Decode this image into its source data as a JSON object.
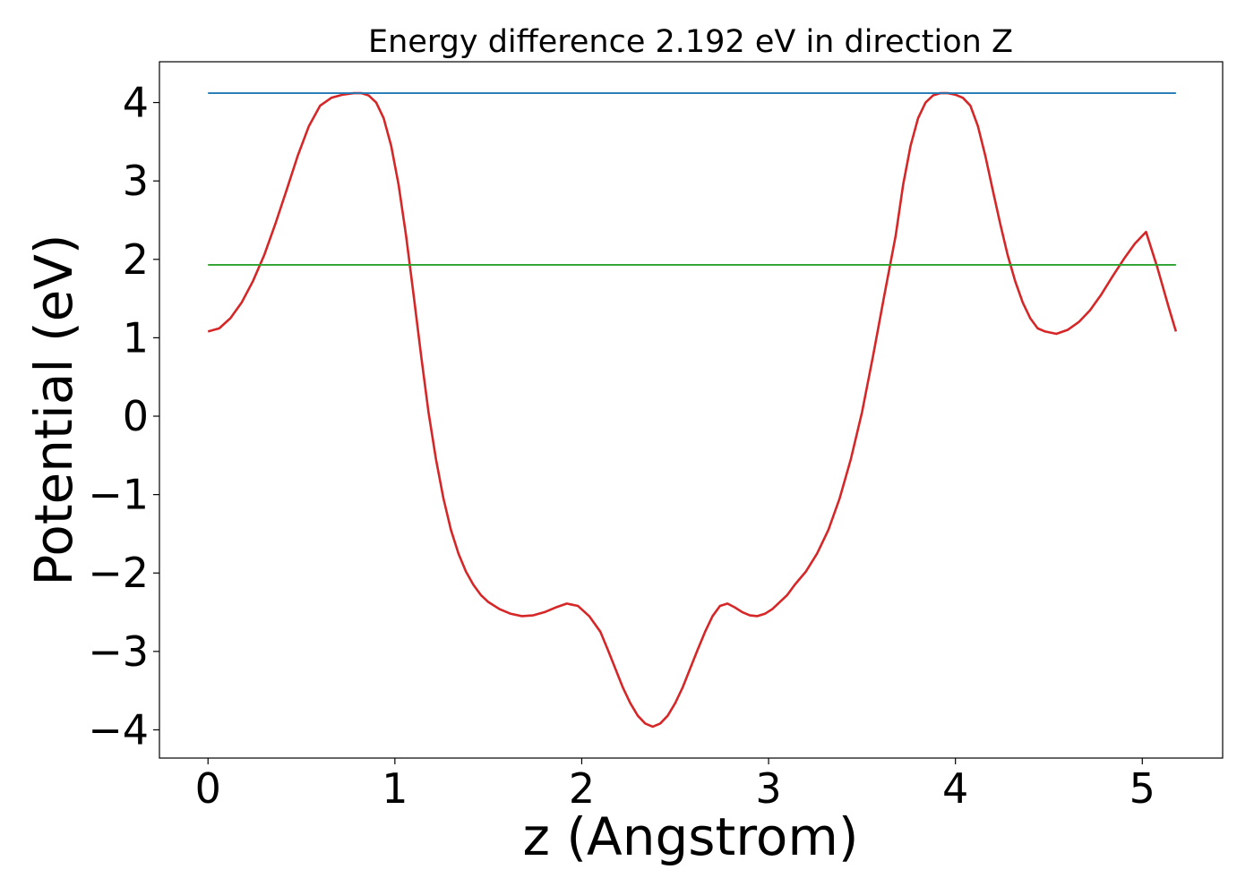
{
  "chart_data": {
    "type": "line",
    "title": "Energy difference 2.192 eV in direction Z",
    "xlabel": "z (Angstrom)",
    "ylabel": "Potential (eV)",
    "xlim": [
      -0.26,
      5.43
    ],
    "ylim": [
      -4.36,
      4.52
    ],
    "x_ticks": [
      0,
      1,
      2,
      3,
      4,
      5
    ],
    "x_tick_labels": [
      "0",
      "1",
      "2",
      "3",
      "4",
      "5"
    ],
    "y_ticks": [
      4,
      3,
      2,
      1,
      0,
      -1,
      -2,
      -3,
      -4
    ],
    "y_tick_labels": [
      "4",
      "3",
      "2",
      "1",
      "0",
      "−1",
      "−2",
      "−3",
      "−4"
    ],
    "grid": false,
    "series": [
      {
        "name": "",
        "color": "#d62728",
        "x": [
          0,
          0.06,
          0.12,
          0.18,
          0.24,
          0.3,
          0.36,
          0.42,
          0.48,
          0.54,
          0.6,
          0.66,
          0.72,
          0.78,
          0.82,
          0.86,
          0.9,
          0.94,
          0.98,
          1.02,
          1.06,
          1.1,
          1.14,
          1.18,
          1.22,
          1.26,
          1.3,
          1.34,
          1.38,
          1.42,
          1.46,
          1.5,
          1.56,
          1.62,
          1.68,
          1.74,
          1.8,
          1.86,
          1.92,
          1.98,
          2.04,
          2.1,
          2.14,
          2.18,
          2.22,
          2.26,
          2.3,
          2.34,
          2.38,
          2.42,
          2.46,
          2.5,
          2.54,
          2.58,
          2.62,
          2.66,
          2.7,
          2.74,
          2.78,
          2.82,
          2.86,
          2.9,
          2.94,
          2.98,
          3.02,
          3.06,
          3.1,
          3.14,
          3.2,
          3.26,
          3.32,
          3.38,
          3.44,
          3.5,
          3.56,
          3.62,
          3.68,
          3.72,
          3.76,
          3.8,
          3.84,
          3.88,
          3.92,
          3.96,
          4.0,
          4.04,
          4.08,
          4.12,
          4.16,
          4.2,
          4.24,
          4.28,
          4.32,
          4.36,
          4.4,
          4.44,
          4.48,
          4.54,
          4.6,
          4.66,
          4.72,
          4.78,
          4.84,
          4.9,
          4.96,
          5.02,
          5.08,
          5.14,
          5.18
        ],
        "y": [
          1.08,
          1.12,
          1.25,
          1.45,
          1.72,
          2.05,
          2.45,
          2.88,
          3.32,
          3.7,
          3.96,
          4.06,
          4.1,
          4.12,
          4.12,
          4.09,
          4.0,
          3.8,
          3.45,
          2.95,
          2.3,
          1.55,
          0.78,
          0.05,
          -0.55,
          -1.05,
          -1.45,
          -1.75,
          -1.98,
          -2.15,
          -2.28,
          -2.37,
          -2.46,
          -2.52,
          -2.55,
          -2.54,
          -2.5,
          -2.44,
          -2.39,
          -2.42,
          -2.55,
          -2.75,
          -2.98,
          -3.22,
          -3.46,
          -3.66,
          -3.82,
          -3.92,
          -3.96,
          -3.92,
          -3.82,
          -3.66,
          -3.46,
          -3.22,
          -2.98,
          -2.75,
          -2.55,
          -2.42,
          -2.39,
          -2.44,
          -2.5,
          -2.54,
          -2.55,
          -2.52,
          -2.46,
          -2.37,
          -2.28,
          -2.15,
          -1.98,
          -1.75,
          -1.45,
          -1.05,
          -0.55,
          0.05,
          0.78,
          1.55,
          2.3,
          2.95,
          3.45,
          3.8,
          4.0,
          4.09,
          4.12,
          4.12,
          4.1,
          4.06,
          3.96,
          3.7,
          3.32,
          2.88,
          2.45,
          2.05,
          1.72,
          1.45,
          1.25,
          1.12,
          1.08,
          1.05,
          1.1,
          1.2,
          1.35,
          1.55,
          1.78,
          2.0,
          2.2,
          2.35,
          1.9,
          1.4,
          1.08
        ]
      },
      {
        "name": "",
        "color": "#1f77b4",
        "x": [
          0,
          5.18
        ],
        "y": [
          4.12,
          4.12
        ]
      },
      {
        "name": "",
        "color": "#2ca02c",
        "x": [
          0,
          5.18
        ],
        "y": [
          1.93,
          1.93
        ]
      }
    ]
  }
}
